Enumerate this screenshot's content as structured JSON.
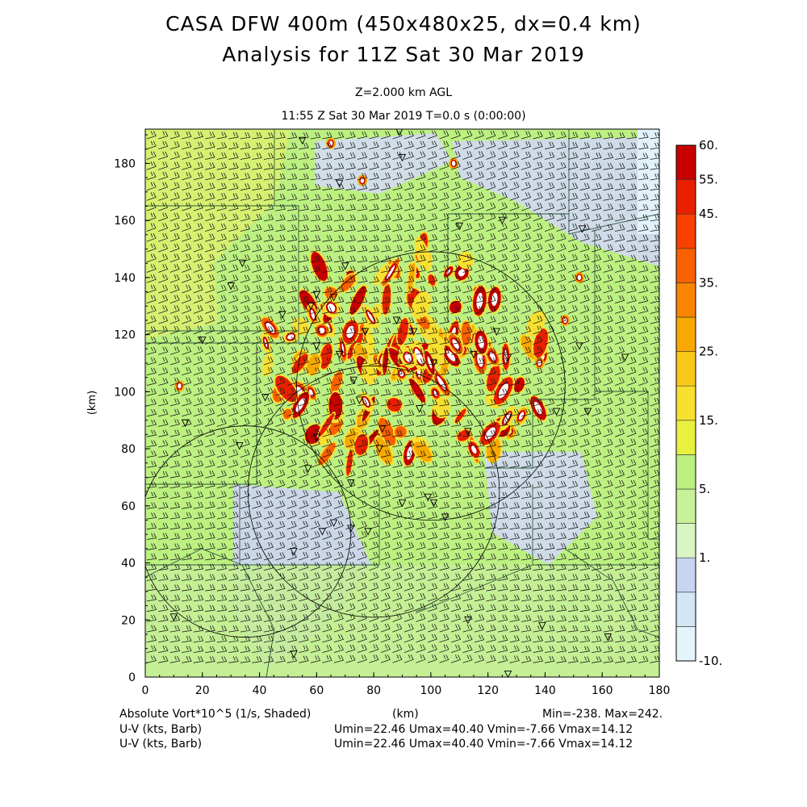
{
  "header": {
    "title_line1": "CASA DFW 400m (450x480x25, dx=0.4 km)",
    "title_line2": "Analysis for 11Z Sat 30 Mar 2019",
    "level": "Z=2.000 km AGL",
    "time": "11:55 Z Sat 30 Mar 2019    T=0.0 s (0:00:00)"
  },
  "footer": {
    "field": "Absolute Vort*10^5 (1/s, Shaded)",
    "xunit": "(km)",
    "minmax": "Min=-238. Max=242.",
    "barb1_label": "U-V (kts, Barb)",
    "barb1_stats": "Umin=22.46 Umax=40.40 Vmin=-7.66 Vmax=14.12",
    "barb2_label": "U-V (kts, Barb)",
    "barb2_stats": "Umin=22.46 Umax=40.40 Vmin=-7.66 Vmax=14.12"
  },
  "chart_data": {
    "type": "heatmap",
    "xlabel": "",
    "ylabel": "(km)",
    "xlim": [
      0,
      180
    ],
    "ylim": [
      0,
      192
    ],
    "xticks": [
      "0",
      "20",
      "40",
      "60",
      "80",
      "100",
      "120",
      "140",
      "160",
      "180"
    ],
    "yticks": [
      "0",
      "20",
      "40",
      "60",
      "80",
      "100",
      "120",
      "140",
      "160",
      "180"
    ],
    "colorbar": {
      "labels": [
        "-10.",
        "1.",
        "5.",
        "15.",
        "25.",
        "35.",
        "45.",
        "55.",
        "60."
      ],
      "colors": [
        "#e4f4fa",
        "#d3e6f5",
        "#c8d4f2",
        "#d9f5c4",
        "#c8f29a",
        "#bcf080",
        "#e8f040",
        "#f8e030",
        "#f8c818",
        "#f8a800",
        "#f88400",
        "#f86000",
        "#f84000",
        "#e82000",
        "#c80000"
      ]
    },
    "radar_rings": [
      {
        "cx": 100,
        "cy": 102,
        "r": 47
      },
      {
        "cx": 35,
        "cy": 51,
        "r": 37
      },
      {
        "cx": 80,
        "cy": 65,
        "r": 44
      }
    ],
    "wind": {
      "u_range": [
        22.46,
        40.4
      ],
      "v_range": [
        -7.66,
        14.12
      ]
    },
    "field_stats": {
      "min": -238,
      "max": 242
    }
  },
  "colors": {
    "background_field": "#bcf080",
    "low_vort": "#c8d4f2",
    "high_vort": "#c80000"
  }
}
